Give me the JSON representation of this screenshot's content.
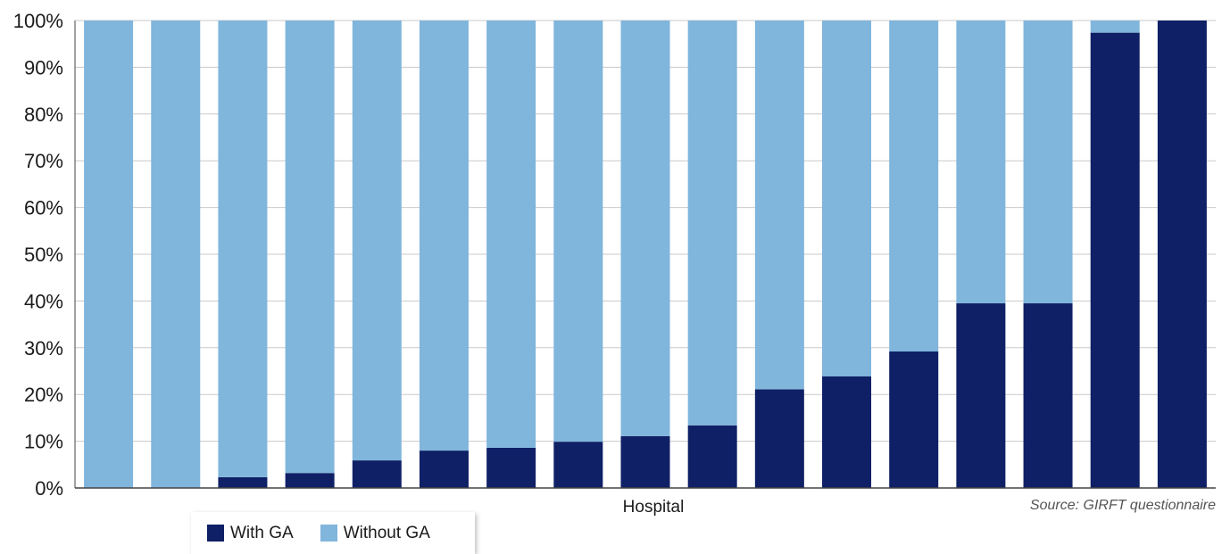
{
  "chart_data": {
    "type": "bar",
    "stacked": true,
    "xlabel": "Hospital",
    "ylabel": "",
    "ylim": [
      0,
      100
    ],
    "yticks": [
      "0%",
      "10%",
      "20%",
      "30%",
      "40%",
      "50%",
      "60%",
      "70%",
      "80%",
      "90%",
      "100%"
    ],
    "ytick_values": [
      0,
      10,
      20,
      30,
      40,
      50,
      60,
      70,
      80,
      90,
      100
    ],
    "grid": true,
    "legend_position": "bottom-left",
    "categories": [
      "",
      "",
      "",
      "",
      "",
      "",
      "",
      "",
      "",
      "",
      "",
      "",
      "",
      "",
      "",
      "",
      ""
    ],
    "series": [
      {
        "name": "With GA",
        "color": "#0f2066",
        "values": [
          0,
          0,
          2.3,
          3.2,
          5.9,
          8,
          8.6,
          9.9,
          11.1,
          13.4,
          21.1,
          23.9,
          29.2,
          39.5,
          39.5,
          97.4,
          100
        ]
      },
      {
        "name": "Without GA",
        "color": "#80b5dc",
        "values": [
          100,
          100,
          97.7,
          96.8,
          94.1,
          92,
          91.4,
          90.1,
          88.9,
          86.6,
          78.9,
          76.1,
          70.8,
          60.5,
          60.5,
          2.6,
          0
        ]
      }
    ],
    "source": "Source: GIRFT questionnaire"
  },
  "legend": {
    "items": [
      {
        "label": "With GA",
        "color": "#0f2066"
      },
      {
        "label": "Without GA",
        "color": "#80b5dc"
      }
    ]
  }
}
